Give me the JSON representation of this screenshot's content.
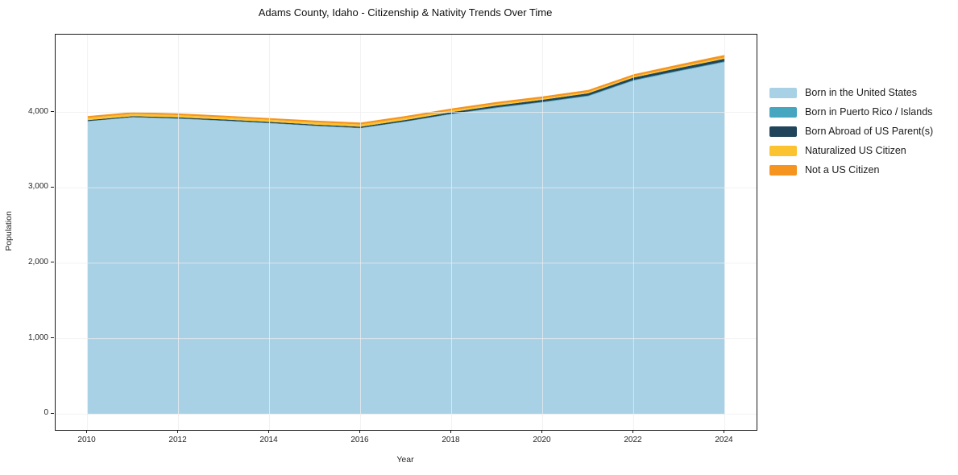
{
  "chart_data": {
    "type": "area",
    "stacked": true,
    "title": "Adams County, Idaho - Citizenship & Nativity Trends Over Time",
    "xlabel": "Year",
    "ylabel": "Population",
    "x": [
      2010,
      2011,
      2012,
      2013,
      2014,
      2015,
      2016,
      2017,
      2018,
      2019,
      2020,
      2021,
      2022,
      2023,
      2024
    ],
    "xlim": [
      2009.3,
      2024.7
    ],
    "ylim": [
      -210,
      5030
    ],
    "grid": true,
    "legend_position": "right",
    "x_ticks": [
      {
        "value": 2010,
        "label": "2010"
      },
      {
        "value": 2012,
        "label": "2012"
      },
      {
        "value": 2014,
        "label": "2014"
      },
      {
        "value": 2016,
        "label": "2016"
      },
      {
        "value": 2018,
        "label": "2018"
      },
      {
        "value": 2020,
        "label": "2020"
      },
      {
        "value": 2022,
        "label": "2022"
      },
      {
        "value": 2024,
        "label": "2024"
      }
    ],
    "y_ticks": [
      {
        "value": 0,
        "label": "0"
      },
      {
        "value": 1000,
        "label": "1,000"
      },
      {
        "value": 2000,
        "label": "2,000"
      },
      {
        "value": 3000,
        "label": "3,000"
      },
      {
        "value": 4000,
        "label": "4,000"
      }
    ],
    "series": [
      {
        "name": "Born in the United States",
        "color": "#a8d1e6",
        "values": [
          3878,
          3932,
          3914,
          3886,
          3854,
          3818,
          3788,
          3876,
          3974,
          4058,
          4130,
          4212,
          4418,
          4544,
          4665
        ]
      },
      {
        "name": "Born in Puerto Rico / Islands",
        "color": "#46a5bf",
        "values": [
          5,
          5,
          5,
          5,
          5,
          5,
          5,
          6,
          7,
          8,
          9,
          10,
          10,
          10,
          10
        ]
      },
      {
        "name": "Born Abroad of US Parent(s)",
        "color": "#20455a",
        "values": [
          13,
          13,
          14,
          14,
          14,
          15,
          16,
          18,
          21,
          25,
          28,
          30,
          33,
          34,
          36
        ]
      },
      {
        "name": "Naturalized US Citizen",
        "color": "#fcc330",
        "values": [
          29,
          29,
          29,
          28,
          28,
          29,
          30,
          27,
          24,
          21,
          18,
          17,
          16,
          17,
          18
        ]
      },
      {
        "name": "Not a US Citizen",
        "color": "#f5941f",
        "values": [
          25,
          24,
          23,
          23,
          22,
          23,
          25,
          25,
          25,
          26,
          26,
          27,
          28,
          30,
          32
        ]
      }
    ]
  }
}
